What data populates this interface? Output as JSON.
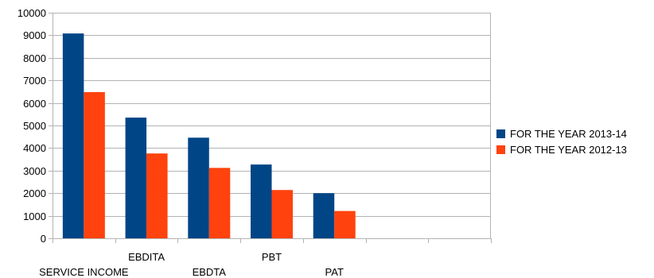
{
  "chart_data": {
    "type": "bar",
    "categories": [
      "SERVICE INCOME",
      "EBDITA",
      "EBDTA",
      "PBT",
      "PAT",
      "",
      ""
    ],
    "series": [
      {
        "name": "FOR THE YEAR 2013-14",
        "color": "#004586",
        "values": [
          9080,
          5350,
          4460,
          3270,
          2000,
          null,
          null
        ]
      },
      {
        "name": "FOR THE YEAR 2012-13",
        "color": "#ff420e",
        "values": [
          6480,
          3760,
          3120,
          2140,
          1210,
          null,
          null
        ]
      }
    ],
    "ylim": [
      0,
      10000
    ],
    "yticks": [
      0,
      1000,
      2000,
      3000,
      4000,
      5000,
      6000,
      7000,
      8000,
      9000,
      10000
    ],
    "grid": true,
    "legend_position": "right",
    "title": "",
    "xlabel": "",
    "ylabel": ""
  }
}
